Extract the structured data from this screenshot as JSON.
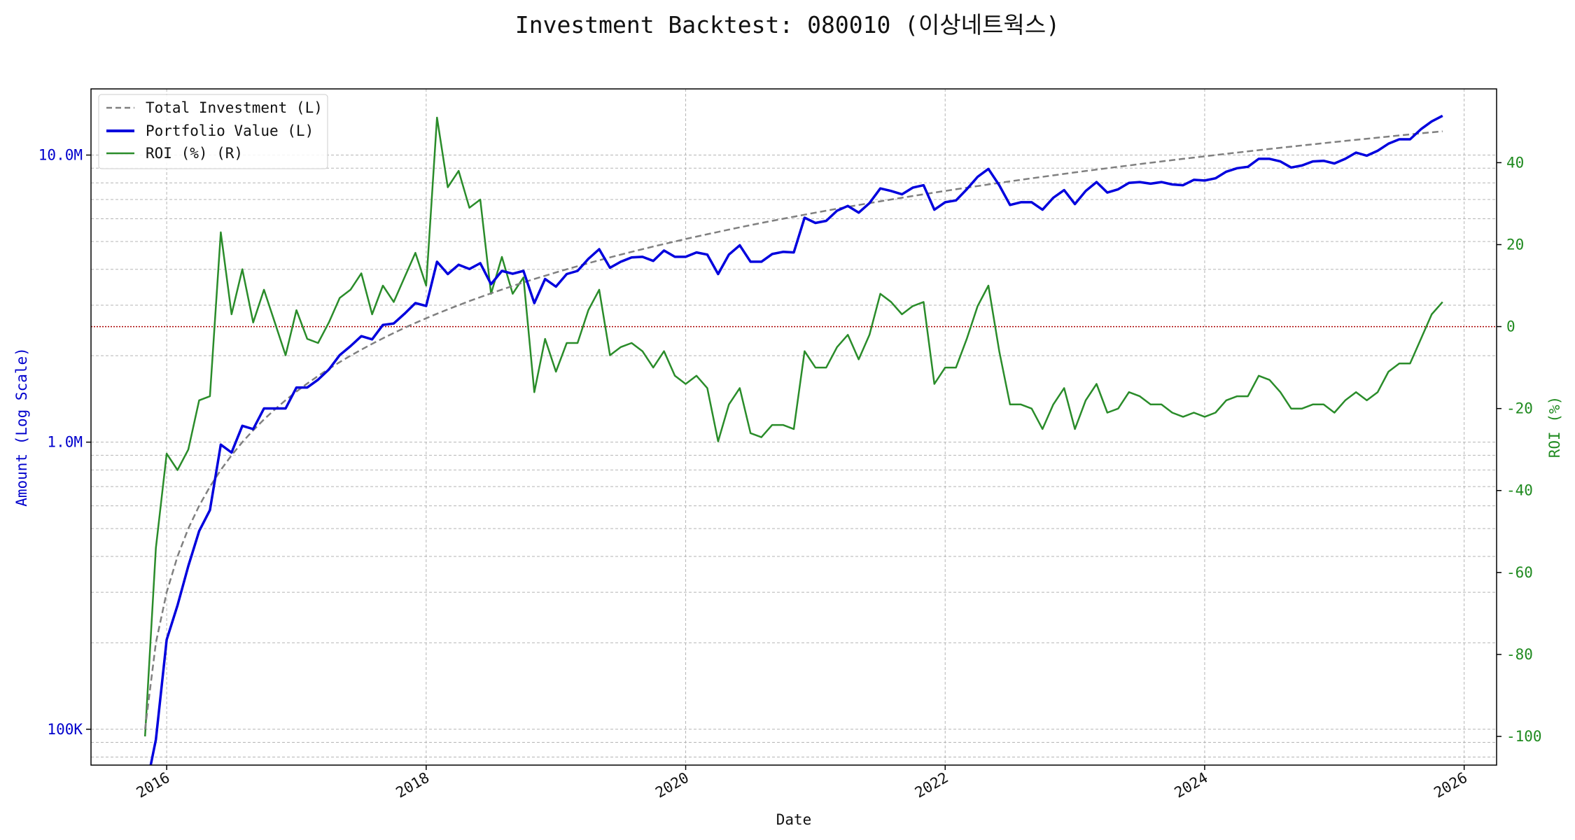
{
  "title": "Investment Backtest: 080010 (이상네트웍스)",
  "colors": {
    "total": "#808080",
    "portfolio": "#0000dd",
    "roi": "#2a8c2a",
    "zero": "#aa0000",
    "left_axis": "#0000cc",
    "right_axis": "#1f8a1f"
  },
  "chart_data": {
    "type": "line",
    "title": "Investment Backtest: 080010 (이상네트웍스)",
    "xlabel": "Date",
    "ylabel_left": "Amount (Log Scale)",
    "ylabel_right": "ROI (%)",
    "left_scale": "log",
    "xlim": [
      "2015-06-01",
      "2026-04-01"
    ],
    "ylim_left": [
      75000,
      17000000
    ],
    "ylim_right": [
      -107,
      58
    ],
    "grid": true,
    "legend_position": "top-left",
    "x_ticks": [
      "2016",
      "2018",
      "2020",
      "2022",
      "2024",
      "2026"
    ],
    "left_ticks": [
      "100K",
      "1.0M",
      "10.0M"
    ],
    "right_ticks": [
      "-100",
      "-80",
      "-60",
      "-40",
      "-20",
      "0",
      "20",
      "40"
    ],
    "zero_line": 0,
    "x": [
      "2015-11",
      "2015-12",
      "2016-01",
      "2016-02",
      "2016-03",
      "2016-04",
      "2016-05",
      "2016-06",
      "2016-07",
      "2016-08",
      "2016-09",
      "2016-10",
      "2016-11",
      "2016-12",
      "2017-01",
      "2017-02",
      "2017-03",
      "2017-04",
      "2017-05",
      "2017-06",
      "2017-07",
      "2017-08",
      "2017-09",
      "2017-10",
      "2017-11",
      "2017-12",
      "2018-01",
      "2018-02",
      "2018-03",
      "2018-04",
      "2018-05",
      "2018-06",
      "2018-07",
      "2018-08",
      "2018-09",
      "2018-10",
      "2018-11",
      "2018-12",
      "2019-01",
      "2019-02",
      "2019-03",
      "2019-04",
      "2019-05",
      "2019-06",
      "2019-07",
      "2019-08",
      "2019-09",
      "2019-10",
      "2019-11",
      "2019-12",
      "2020-01",
      "2020-02",
      "2020-03",
      "2020-04",
      "2020-05",
      "2020-06",
      "2020-07",
      "2020-08",
      "2020-09",
      "2020-10",
      "2020-11",
      "2020-12",
      "2021-01",
      "2021-02",
      "2021-03",
      "2021-04",
      "2021-05",
      "2021-06",
      "2021-07",
      "2021-08",
      "2021-09",
      "2021-10",
      "2021-11",
      "2021-12",
      "2022-01",
      "2022-02",
      "2022-03",
      "2022-04",
      "2022-05",
      "2022-06",
      "2022-07",
      "2022-08",
      "2022-09",
      "2022-10",
      "2022-11",
      "2022-12",
      "2023-01",
      "2023-02",
      "2023-03",
      "2023-04",
      "2023-05",
      "2023-06",
      "2023-07",
      "2023-08",
      "2023-09",
      "2023-10",
      "2023-11",
      "2023-12",
      "2024-01",
      "2024-02",
      "2024-03",
      "2024-04",
      "2024-05",
      "2024-06",
      "2024-07",
      "2024-08",
      "2024-09",
      "2024-10",
      "2024-11",
      "2024-12",
      "2025-01",
      "2025-02",
      "2025-03",
      "2025-04",
      "2025-05",
      "2025-06",
      "2025-07",
      "2025-08",
      "2025-09",
      "2025-10",
      "2025-11"
    ],
    "series": [
      {
        "name": "Total Investment (L)",
        "style": "dashed",
        "axis": "left",
        "values": [
          100000,
          200000,
          300000,
          400000,
          500000,
          600000,
          700000,
          800000,
          900000,
          1000000,
          1100000,
          1200000,
          1300000,
          1400000,
          1500000,
          1600000,
          1700000,
          1800000,
          1900000,
          2000000,
          2100000,
          2200000,
          2300000,
          2400000,
          2500000,
          2600000,
          2700000,
          2800000,
          2900000,
          3000000,
          3100000,
          3200000,
          3300000,
          3400000,
          3500000,
          3600000,
          3700000,
          3800000,
          3900000,
          4000000,
          4100000,
          4200000,
          4300000,
          4400000,
          4500000,
          4600000,
          4700000,
          4800000,
          4900000,
          5000000,
          5100000,
          5200000,
          5300000,
          5400000,
          5500000,
          5600000,
          5700000,
          5800000,
          5900000,
          6000000,
          6100000,
          6200000,
          6300000,
          6400000,
          6500000,
          6600000,
          6700000,
          6800000,
          6900000,
          7000000,
          7100000,
          7200000,
          7300000,
          7400000,
          7500000,
          7600000,
          7700000,
          7800000,
          7900000,
          8000000,
          8100000,
          8200000,
          8300000,
          8400000,
          8500000,
          8600000,
          8700000,
          8800000,
          8900000,
          9000000,
          9100000,
          9200000,
          9300000,
          9400000,
          9500000,
          9600000,
          9700000,
          9800000,
          9900000,
          10000000,
          10100000,
          10200000,
          10300000,
          10400000,
          10500000,
          10600000,
          10700000,
          10800000,
          10900000,
          11000000,
          11100000,
          11200000,
          11300000,
          11400000,
          11500000,
          11600000,
          11700000,
          11800000,
          11900000,
          12000000,
          12100000
        ]
      },
      {
        "name": "Portfolio Value (L)",
        "style": "solid-thick",
        "axis": "left",
        "values": [
          0,
          92000,
          205000,
          270000,
          370000,
          490000,
          580000,
          980000,
          920000,
          1140000,
          1110000,
          1310000,
          1310000,
          1310000,
          1550000,
          1550000,
          1650000,
          1790000,
          2010000,
          2160000,
          2340000,
          2280000,
          2560000,
          2590000,
          2800000,
          3050000,
          2980000,
          4250000,
          3850000,
          4150000,
          4010000,
          4200000,
          3550000,
          3950000,
          3860000,
          3950000,
          3050000,
          3700000,
          3480000,
          3850000,
          3950000,
          4350000,
          4700000,
          4050000,
          4250000,
          4400000,
          4420000,
          4280000,
          4650000,
          4420000,
          4420000,
          4580000,
          4500000,
          3850000,
          4500000,
          4850000,
          4250000,
          4250000,
          4520000,
          4600000,
          4580000,
          6050000,
          5800000,
          5900000,
          6400000,
          6650000,
          6300000,
          6800000,
          7650000,
          7500000,
          7300000,
          7700000,
          7850000,
          6450000,
          6850000,
          6950000,
          7600000,
          8400000,
          8950000,
          7850000,
          6700000,
          6850000,
          6850000,
          6450000,
          7100000,
          7550000,
          6750000,
          7500000,
          8050000,
          7400000,
          7600000,
          8000000,
          8050000,
          7950000,
          8050000,
          7900000,
          7850000,
          8200000,
          8150000,
          8300000,
          8750000,
          9000000,
          9100000,
          9700000,
          9700000,
          9500000,
          9050000,
          9200000,
          9500000,
          9550000,
          9350000,
          9700000,
          10200000,
          9950000,
          10350000,
          10950000,
          11350000,
          11350000,
          12300000,
          13100000,
          13700000
        ]
      },
      {
        "name": "ROI (%) (R)",
        "style": "solid",
        "axis": "right",
        "values": [
          -100,
          -54,
          -31,
          -35,
          -30,
          -18,
          -17,
          23,
          3,
          14,
          1,
          9,
          1,
          -7,
          4,
          -3,
          -4,
          1,
          7,
          9,
          13,
          3,
          10,
          6,
          12,
          18,
          10,
          51,
          34,
          38,
          29,
          31,
          8,
          17,
          8,
          12,
          -16,
          -3,
          -11,
          -4,
          -4,
          4,
          9,
          -7,
          -5,
          -4,
          -6,
          -10,
          -6,
          -12,
          -14,
          -12,
          -15,
          -28,
          -19,
          -15,
          -26,
          -27,
          -24,
          -24,
          -25,
          -6,
          -10,
          -10,
          -5,
          -2,
          -8,
          -2,
          8,
          6,
          3,
          5,
          6,
          -14,
          -10,
          -10,
          -3,
          5,
          10,
          -6,
          -19,
          -19,
          -20,
          -25,
          -19,
          -15,
          -25,
          -18,
          -14,
          -21,
          -20,
          -16,
          -17,
          -19,
          -19,
          -21,
          -22,
          -21,
          -22,
          -21,
          -18,
          -17,
          -17,
          -12,
          -13,
          -16,
          -20,
          -20,
          -19,
          -19,
          -21,
          -18,
          -16,
          -18,
          -16,
          -11,
          -9,
          -9,
          -3,
          3,
          6
        ]
      }
    ]
  }
}
